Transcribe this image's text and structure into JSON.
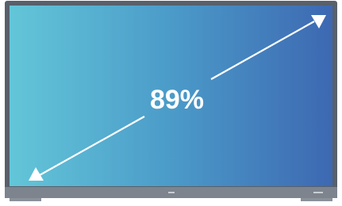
{
  "screen": {
    "label": "89%"
  }
}
